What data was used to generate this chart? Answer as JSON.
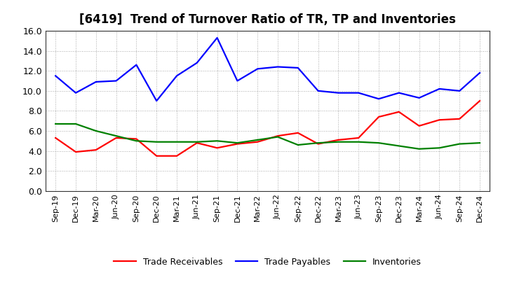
{
  "title": "[6419]  Trend of Turnover Ratio of TR, TP and Inventories",
  "labels": [
    "Sep-19",
    "Dec-19",
    "Mar-20",
    "Jun-20",
    "Sep-20",
    "Dec-20",
    "Mar-21",
    "Jun-21",
    "Sep-21",
    "Dec-21",
    "Mar-22",
    "Jun-22",
    "Sep-22",
    "Dec-22",
    "Mar-23",
    "Jun-23",
    "Sep-23",
    "Dec-23",
    "Mar-24",
    "Jun-24",
    "Sep-24",
    "Dec-24"
  ],
  "trade_receivables": [
    5.3,
    3.9,
    4.1,
    5.3,
    5.2,
    3.5,
    3.5,
    4.8,
    4.3,
    4.7,
    4.9,
    5.5,
    5.8,
    4.7,
    5.1,
    5.3,
    7.4,
    7.9,
    6.5,
    7.1,
    7.2,
    9.0
  ],
  "trade_payables": [
    11.5,
    9.8,
    10.9,
    11.0,
    12.6,
    9.0,
    11.5,
    12.8,
    15.3,
    11.0,
    12.2,
    12.4,
    12.3,
    10.0,
    9.8,
    9.8,
    9.2,
    9.8,
    9.3,
    10.2,
    10.0,
    11.8
  ],
  "inventories": [
    6.7,
    6.7,
    6.0,
    5.5,
    5.0,
    4.9,
    4.9,
    4.9,
    5.0,
    4.8,
    5.1,
    5.4,
    4.6,
    4.8,
    4.9,
    4.9,
    4.8,
    4.5,
    4.2,
    4.3,
    4.7,
    4.8
  ],
  "ylim": [
    0.0,
    16.0
  ],
  "yticks": [
    0.0,
    2.0,
    4.0,
    6.0,
    8.0,
    10.0,
    12.0,
    14.0,
    16.0
  ],
  "color_tr": "#ff0000",
  "color_tp": "#0000ff",
  "color_inv": "#008000",
  "legend_tr": "Trade Receivables",
  "legend_tp": "Trade Payables",
  "legend_inv": "Inventories",
  "bg_color": "#ffffff",
  "grid_color": "#aaaaaa",
  "title_fontsize": 12,
  "tick_fontsize": 8,
  "linewidth": 1.6
}
